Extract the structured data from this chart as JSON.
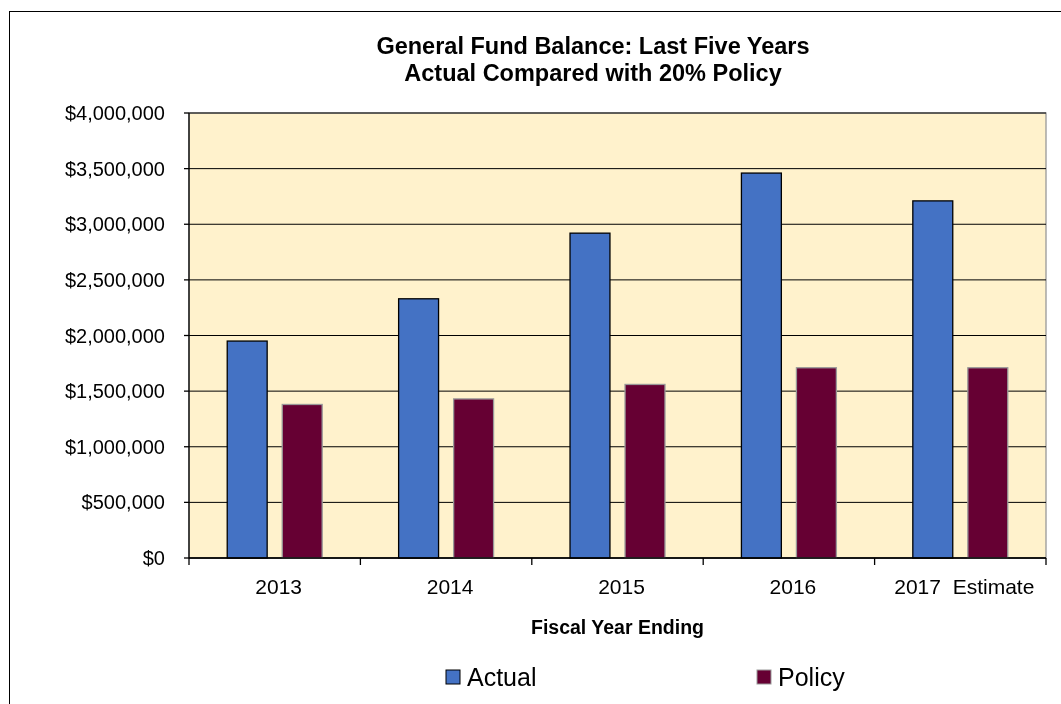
{
  "chart_data": {
    "type": "bar",
    "title": "General Fund Balance: Last Five Years",
    "subtitle": "Actual Compared with 20% Policy",
    "xlabel": "Fiscal Year Ending",
    "categories": [
      "2013",
      "2014",
      "2015",
      "2016",
      "2017  Estimate"
    ],
    "series": [
      {
        "name": "Actual",
        "color": "#4472c4",
        "values": [
          1950000,
          2330000,
          2920000,
          3460000,
          3210000
        ]
      },
      {
        "name": "Policy",
        "color": "#660033",
        "values": [
          1380000,
          1430000,
          1560000,
          1710000,
          1710000
        ]
      }
    ],
    "ylim": [
      0,
      4000000
    ],
    "yticks": [
      {
        "value": 0,
        "label": "$0"
      },
      {
        "value": 500000,
        "label": "$500,000"
      },
      {
        "value": 1000000,
        "label": "$1,000,000"
      },
      {
        "value": 1500000,
        "label": "$1,500,000"
      },
      {
        "value": 2000000,
        "label": "$2,000,000"
      },
      {
        "value": 2500000,
        "label": "$2,500,000"
      },
      {
        "value": 3000000,
        "label": "$3,000,000"
      },
      {
        "value": 3500000,
        "label": "$3,500,000"
      },
      {
        "value": 4000000,
        "label": "$4,000,000"
      }
    ],
    "grid": "y",
    "legend": "bottom"
  }
}
